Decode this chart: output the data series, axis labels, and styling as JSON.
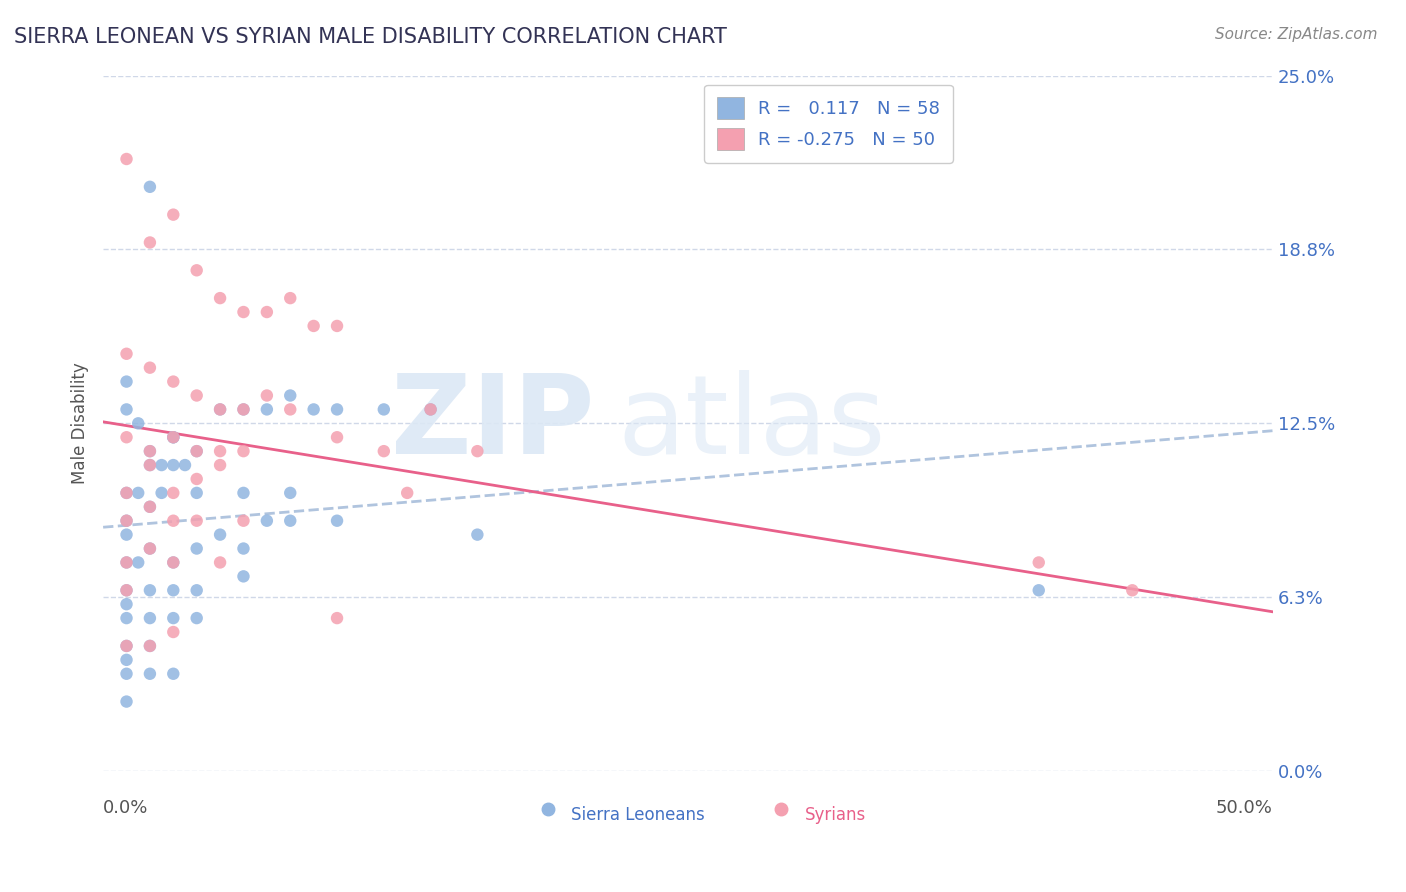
{
  "title": "SIERRA LEONEAN VS SYRIAN MALE DISABILITY CORRELATION CHART",
  "source": "Source: ZipAtlas.com",
  "ylabel": "Male Disability",
  "xlim": [
    0.0,
    0.5
  ],
  "ylim": [
    0.0,
    0.25
  ],
  "yticks": [
    0.0,
    0.0625,
    0.125,
    0.1875,
    0.25
  ],
  "ytick_labels": [
    "0.0%",
    "6.3%",
    "12.5%",
    "18.8%",
    "25.0%"
  ],
  "sierra_color": "#91b5e0",
  "syrian_color": "#f4a0b0",
  "sierra_R": 0.117,
  "sierra_N": 58,
  "syrian_R": -0.275,
  "syrian_N": 50,
  "trend_blue_color": "#b0c4de",
  "trend_pink_color": "#e8608a",
  "background_color": "#ffffff",
  "grid_color": "#d0d8e8",
  "sierra_scatter_x": [
    0.01,
    0.02,
    0.01,
    0.03,
    0.02,
    0.01,
    0.015,
    0.02,
    0.025,
    0.03,
    0.035,
    0.04,
    0.05,
    0.06,
    0.07,
    0.08,
    0.09,
    0.1,
    0.12,
    0.14,
    0.01,
    0.01,
    0.015,
    0.02,
    0.025,
    0.03,
    0.04,
    0.06,
    0.08,
    0.1,
    0.01,
    0.015,
    0.02,
    0.03,
    0.04,
    0.05,
    0.06,
    0.07,
    0.08,
    0.01,
    0.01,
    0.02,
    0.03,
    0.04,
    0.16,
    0.01,
    0.02,
    0.03,
    0.04,
    0.06,
    0.01,
    0.02,
    0.01,
    0.01,
    0.02,
    0.03,
    0.4,
    0.01
  ],
  "sierra_scatter_y": [
    0.14,
    0.21,
    0.13,
    0.12,
    0.11,
    0.1,
    0.125,
    0.115,
    0.11,
    0.12,
    0.11,
    0.115,
    0.13,
    0.13,
    0.13,
    0.135,
    0.13,
    0.13,
    0.13,
    0.13,
    0.09,
    0.085,
    0.1,
    0.095,
    0.1,
    0.11,
    0.1,
    0.1,
    0.1,
    0.09,
    0.075,
    0.075,
    0.08,
    0.075,
    0.08,
    0.085,
    0.08,
    0.09,
    0.09,
    0.065,
    0.06,
    0.065,
    0.065,
    0.065,
    0.085,
    0.055,
    0.055,
    0.055,
    0.055,
    0.07,
    0.045,
    0.045,
    0.04,
    0.035,
    0.035,
    0.035,
    0.065,
    0.025
  ],
  "syrian_scatter_x": [
    0.01,
    0.02,
    0.03,
    0.04,
    0.05,
    0.06,
    0.07,
    0.08,
    0.09,
    0.1,
    0.01,
    0.02,
    0.03,
    0.04,
    0.05,
    0.06,
    0.07,
    0.08,
    0.1,
    0.12,
    0.01,
    0.02,
    0.03,
    0.04,
    0.05,
    0.06,
    0.14,
    0.01,
    0.02,
    0.03,
    0.04,
    0.05,
    0.16,
    0.01,
    0.02,
    0.03,
    0.04,
    0.06,
    0.13,
    0.01,
    0.02,
    0.03,
    0.05,
    0.4,
    0.44,
    0.01,
    0.1,
    0.01,
    0.02,
    0.03
  ],
  "syrian_scatter_y": [
    0.22,
    0.19,
    0.2,
    0.18,
    0.17,
    0.165,
    0.165,
    0.17,
    0.16,
    0.16,
    0.15,
    0.145,
    0.14,
    0.135,
    0.13,
    0.13,
    0.135,
    0.13,
    0.12,
    0.115,
    0.12,
    0.115,
    0.12,
    0.115,
    0.11,
    0.115,
    0.13,
    0.1,
    0.11,
    0.1,
    0.105,
    0.115,
    0.115,
    0.09,
    0.095,
    0.09,
    0.09,
    0.09,
    0.1,
    0.075,
    0.08,
    0.075,
    0.075,
    0.075,
    0.065,
    0.065,
    0.055,
    0.045,
    0.045,
    0.05
  ]
}
